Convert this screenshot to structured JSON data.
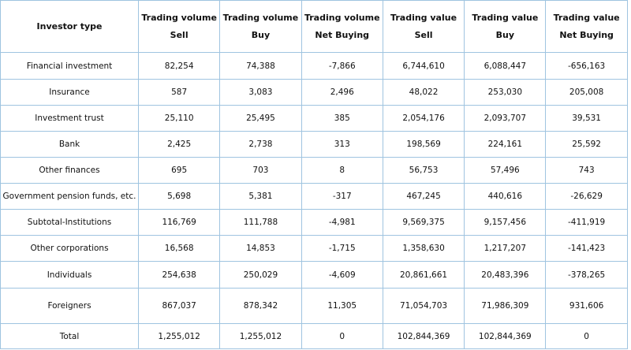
{
  "table": {
    "headers": [
      {
        "line1": "Investor type",
        "line2": ""
      },
      {
        "line1": "Trading volume",
        "line2": "Sell"
      },
      {
        "line1": "Trading volume",
        "line2": "Buy"
      },
      {
        "line1": "Trading volume",
        "line2": "Net Buying"
      },
      {
        "line1": "Trading value",
        "line2": "Sell"
      },
      {
        "line1": "Trading value",
        "line2": "Buy"
      },
      {
        "line1": "Trading value",
        "line2": "Net Buying"
      }
    ],
    "rows": [
      [
        "Financial investment",
        "82,254",
        "74,388",
        "-7,866",
        "6,744,610",
        "6,088,447",
        "-656,163"
      ],
      [
        "Insurance",
        "587",
        "3,083",
        "2,496",
        "48,022",
        "253,030",
        "205,008"
      ],
      [
        "Investment trust",
        "25,110",
        "25,495",
        "385",
        "2,054,176",
        "2,093,707",
        "39,531"
      ],
      [
        "Bank",
        "2,425",
        "2,738",
        "313",
        "198,569",
        "224,161",
        "25,592"
      ],
      [
        "Other finances",
        "695",
        "703",
        "8",
        "56,753",
        "57,496",
        "743"
      ],
      [
        "Government pension funds, etc.",
        "5,698",
        "5,381",
        "-317",
        "467,245",
        "440,616",
        "-26,629"
      ],
      [
        "Subtotal-Institutions",
        "116,769",
        "111,788",
        "-4,981",
        "9,569,375",
        "9,157,456",
        "-411,919"
      ],
      [
        "Other corporations",
        "16,568",
        "14,853",
        "-1,715",
        "1,358,630",
        "1,217,207",
        "-141,423"
      ],
      [
        "Individuals",
        "254,638",
        "250,029",
        "-4,609",
        "20,861,661",
        "20,483,396",
        "-378,265"
      ],
      [
        "Foreigners",
        "867,037",
        "878,342",
        "11,305",
        "71,054,703",
        "71,986,309",
        "931,606"
      ],
      [
        "Total",
        "1,255,012",
        "1,255,012",
        "0",
        "102,844,369",
        "102,844,369",
        "0"
      ]
    ],
    "border_color": "#9fc4e0"
  }
}
